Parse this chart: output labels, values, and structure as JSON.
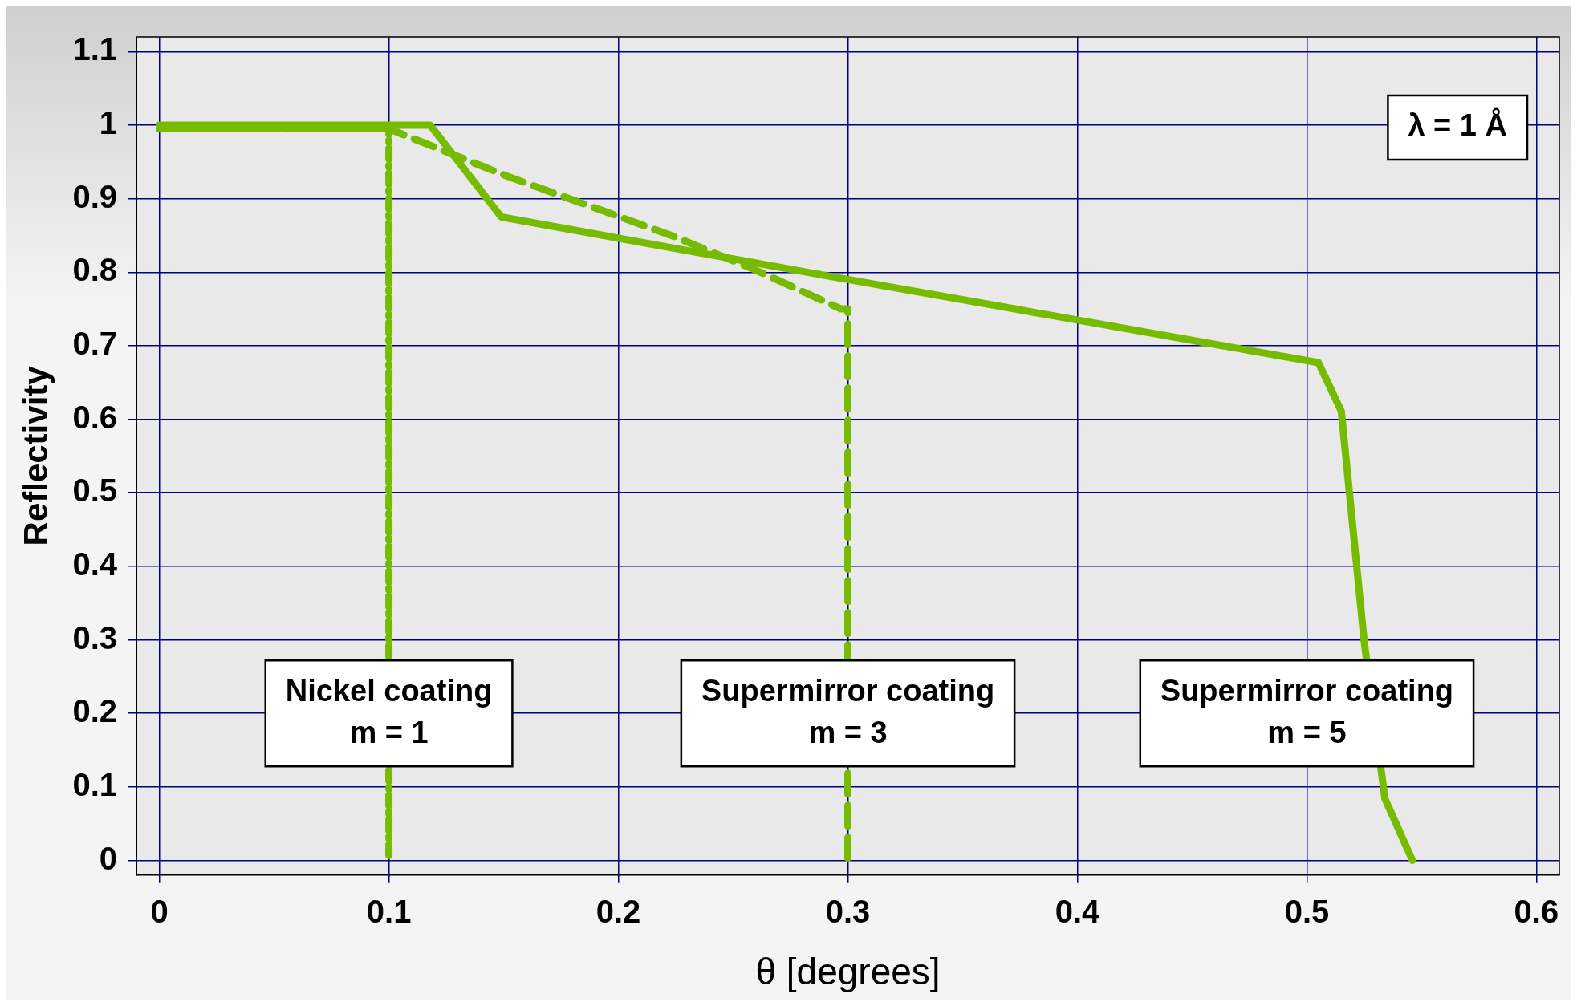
{
  "chart_data": {
    "type": "line",
    "xlabel": "θ [degrees]",
    "ylabel": "Reflectivity",
    "xlim": [
      -0.01,
      0.61
    ],
    "ylim": [
      -0.02,
      1.12
    ],
    "xticks": [
      0,
      0.1,
      0.2,
      0.3,
      0.4,
      0.5,
      0.6
    ],
    "yticks": [
      0,
      0.1,
      0.2,
      0.3,
      0.4,
      0.5,
      0.6,
      0.7,
      0.8,
      0.9,
      1,
      1.1
    ],
    "grid": true,
    "legend": false,
    "marker": "none",
    "series": [
      {
        "color": "#77bb00",
        "line_style": "dotted",
        "x": [
          0,
          0.1,
          0.1
        ],
        "values": [
          0.995,
          0.995,
          0
        ]
      },
      {
        "color": "#77bb00",
        "line_style": "dashed",
        "x": [
          0,
          0.1,
          0.152,
          0.223,
          0.259,
          0.297,
          0.3,
          0.3
        ],
        "values": [
          0.995,
          0.995,
          0.93,
          0.85,
          0.804,
          0.75,
          0.75,
          0
        ]
      },
      {
        "color": "#77bb00",
        "line_style": "solid",
        "x": [
          0,
          0.118,
          0.149,
          0.3,
          0.4,
          0.505,
          0.515,
          0.525,
          0.534,
          0.546
        ],
        "values": [
          1,
          1,
          0.875,
          0.79,
          0.735,
          0.677,
          0.611,
          0.297,
          0.084,
          0
        ]
      }
    ],
    "annotations": [
      {
        "text": "Nickel coating\nm = 1",
        "x": 0.1,
        "y": 0.2
      },
      {
        "text": "Supermirror coating\nm = 3",
        "x": 0.3,
        "y": 0.2
      },
      "Supermirror coating\nm = 5",
      "λ = 1 Å"
    ]
  }
}
